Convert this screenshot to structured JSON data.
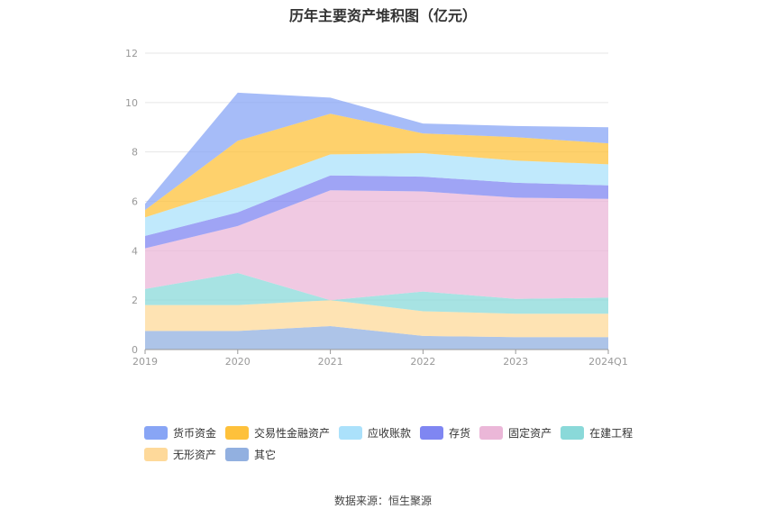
{
  "title": "历年主要资产堆积图（亿元）",
  "source": "数据来源：恒生聚源",
  "chart_data": {
    "type": "area",
    "stacked": true,
    "categories": [
      "2019",
      "2020",
      "2021",
      "2022",
      "2023",
      "2024Q1"
    ],
    "ylim": [
      0,
      12
    ],
    "yticks": [
      0,
      2,
      4,
      6,
      8,
      10,
      12
    ],
    "grid": true,
    "legend_position": "bottom",
    "series": [
      {
        "name": "其它",
        "color": "#92b0e0",
        "values": [
          0.75,
          0.75,
          0.95,
          0.55,
          0.5,
          0.5
        ]
      },
      {
        "name": "无形资产",
        "color": "#fed99a",
        "values": [
          1.05,
          1.05,
          1.05,
          1.0,
          0.95,
          0.95
        ]
      },
      {
        "name": "在建工程",
        "color": "#8ad9d9",
        "values": [
          0.65,
          1.3,
          0.0,
          0.8,
          0.6,
          0.65
        ]
      },
      {
        "name": "固定资产",
        "color": "#ebb7d8",
        "values": [
          1.65,
          1.9,
          4.45,
          4.05,
          4.1,
          4.0
        ]
      },
      {
        "name": "存货",
        "color": "#7f86f2",
        "values": [
          0.5,
          0.55,
          0.6,
          0.6,
          0.6,
          0.55
        ]
      },
      {
        "name": "应收账款",
        "color": "#abe1fb",
        "values": [
          0.75,
          1.0,
          0.85,
          0.95,
          0.9,
          0.85
        ]
      },
      {
        "name": "交易性金融资产",
        "color": "#fec13b",
        "values": [
          0.3,
          1.9,
          1.65,
          0.8,
          0.95,
          0.85
        ]
      },
      {
        "name": "货币资金",
        "color": "#88a5f5",
        "values": [
          0.25,
          1.95,
          0.65,
          0.4,
          0.45,
          0.65
        ]
      }
    ]
  },
  "legend_order": [
    "货币资金",
    "交易性金融资产",
    "应收账款",
    "存货",
    "固定资产",
    "在建工程",
    "无形资产",
    "其它"
  ]
}
